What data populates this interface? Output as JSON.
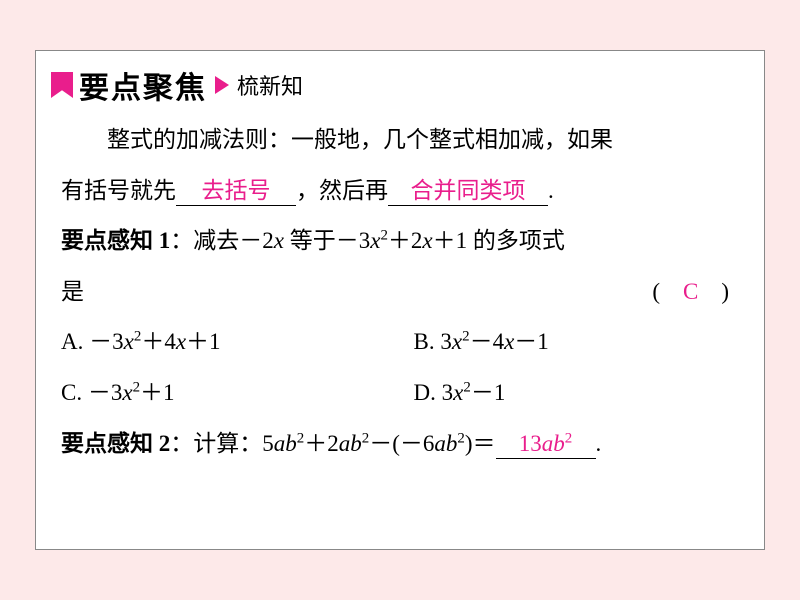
{
  "colors": {
    "page_bg": "#fde9e9",
    "box_bg": "#ffffff",
    "box_border": "#888888",
    "accent": "#e91e8c",
    "text": "#000000"
  },
  "header": {
    "title": "要点聚焦",
    "subtitle": "梳新知"
  },
  "intro": {
    "part1": "整式的加减法则：一般地，几个整式相加减，如果",
    "part2": "有括号就先",
    "blank1": "去括号",
    "part3": "，然后再",
    "blank2": "合并同类项",
    "part4": "."
  },
  "q1": {
    "label": "要点感知 1",
    "text_before": "：减去－2",
    "var_x": "x",
    "text_mid1": " 等于－3",
    "text_mid2": "＋2",
    "text_mid3": "＋1 的多项式",
    "text_line2": "是",
    "answer": "C",
    "options": {
      "A": {
        "prefix": "A. －3",
        "mid": "＋4",
        "suffix": "＋1"
      },
      "B": {
        "prefix": "B. 3",
        "mid": "－4",
        "suffix": "－1"
      },
      "C": {
        "prefix": "C. －3",
        "suffix": "＋1"
      },
      "D": {
        "prefix": "D. 3",
        "suffix": "－1"
      }
    }
  },
  "q2": {
    "label": "要点感知 2",
    "text_before": "：计算：5",
    "var_a": "a",
    "var_b": "b",
    "text_mid1": "＋2",
    "text_mid2": "－(－6",
    "text_mid3": ")＝",
    "answer_coef": "13",
    "period": "."
  }
}
